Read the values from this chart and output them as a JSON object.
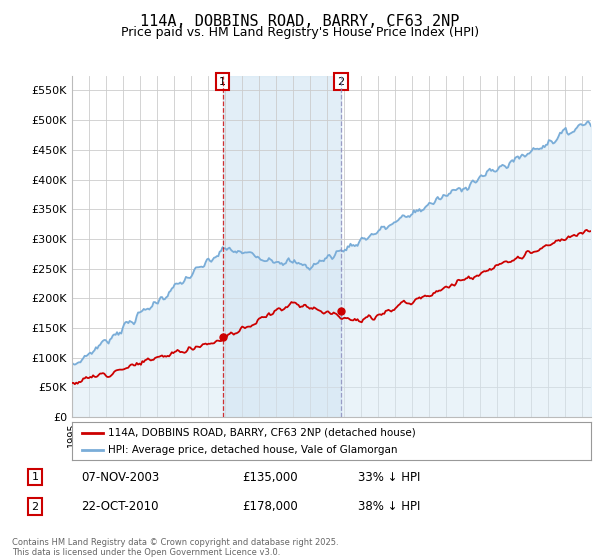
{
  "title": "114A, DOBBINS ROAD, BARRY, CF63 2NP",
  "subtitle": "Price paid vs. HM Land Registry's House Price Index (HPI)",
  "title_fontsize": 11,
  "subtitle_fontsize": 9,
  "hpi_color": "#7aadd8",
  "hpi_fill_color": "#d6e8f5",
  "price_color": "#cc0000",
  "vline1_color": "#cc0000",
  "vline2_color": "#8888bb",
  "annotation_box_color": "#cc0000",
  "grid_color": "#cccccc",
  "background_color": "#ffffff",
  "legend_label_red": "114A, DOBBINS ROAD, BARRY, CF63 2NP (detached house)",
  "legend_label_blue": "HPI: Average price, detached house, Vale of Glamorgan",
  "transaction1_date": "07-NOV-2003",
  "transaction1_price": "£135,000",
  "transaction1_pct": "33% ↓ HPI",
  "transaction1_year": 2003.85,
  "transaction1_price_val": 135000,
  "transaction2_date": "22-OCT-2010",
  "transaction2_price": "£178,000",
  "transaction2_pct": "38% ↓ HPI",
  "transaction2_year": 2010.8,
  "transaction2_price_val": 178000,
  "footnote": "Contains HM Land Registry data © Crown copyright and database right 2025.\nThis data is licensed under the Open Government Licence v3.0.",
  "xmin": 1995,
  "xmax": 2025.5,
  "ylim": [
    0,
    575000
  ],
  "yticks": [
    0,
    50000,
    100000,
    150000,
    200000,
    250000,
    300000,
    350000,
    400000,
    450000,
    500000,
    550000
  ],
  "ytick_labels": [
    "£0",
    "£50K",
    "£100K",
    "£150K",
    "£200K",
    "£250K",
    "£300K",
    "£350K",
    "£400K",
    "£450K",
    "£500K",
    "£550K"
  ]
}
